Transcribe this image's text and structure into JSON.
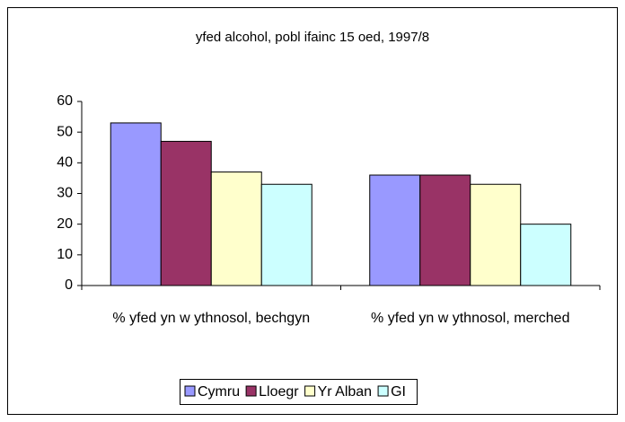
{
  "chart_data": {
    "type": "bar",
    "title": "yfed alcohol, pobl ifainc 15 oed, 1997/8",
    "categories": [
      "% yfed yn w ythnosol, bechgyn",
      "% yfed yn w ythnosol, merched"
    ],
    "series": [
      {
        "name": "Cymru",
        "color": "#9999ff",
        "values": [
          53,
          36
        ]
      },
      {
        "name": "Lloegr",
        "color": "#993366",
        "values": [
          47,
          36
        ]
      },
      {
        "name": "Yr Alban",
        "color": "#ffffcc",
        "values": [
          37,
          33
        ]
      },
      {
        "name": "GI",
        "color": "#ccffff",
        "values": [
          33,
          20
        ]
      }
    ],
    "ylim": [
      0,
      60
    ],
    "yticks": [
      0,
      10,
      20,
      30,
      40,
      50,
      60
    ],
    "grid": false,
    "legend": "bottom"
  }
}
